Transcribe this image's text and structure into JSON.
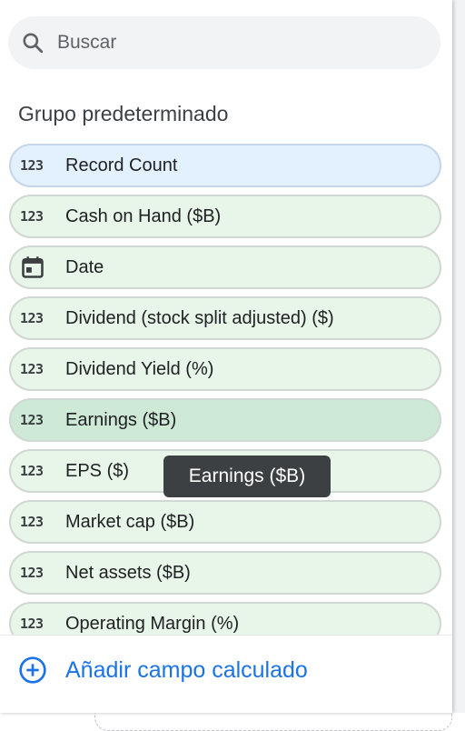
{
  "search": {
    "placeholder": "Buscar",
    "icon": "search-icon"
  },
  "group": {
    "title": "Grupo predeterminado"
  },
  "fields": [
    {
      "type_label": "123",
      "name": "Record Count",
      "kind": "metric-dimension-blue"
    },
    {
      "type_label": "123",
      "name": "Cash on Hand ($B)",
      "kind": "metric"
    },
    {
      "type_label": "",
      "name": "Date",
      "kind": "date",
      "icon": "calendar-icon"
    },
    {
      "type_label": "123",
      "name": "Dividend (stock split adjusted) ($)",
      "kind": "metric"
    },
    {
      "type_label": "123",
      "name": "Dividend Yield (%)",
      "kind": "metric"
    },
    {
      "type_label": "123",
      "name": "Earnings ($B)",
      "kind": "metric",
      "state": "hover"
    },
    {
      "type_label": "123",
      "name": "EPS ($)",
      "kind": "metric"
    },
    {
      "type_label": "123",
      "name": "Market cap ($B)",
      "kind": "metric"
    },
    {
      "type_label": "123",
      "name": "Net assets ($B)",
      "kind": "metric"
    },
    {
      "type_label": "123",
      "name": "Operating Margin (%)",
      "kind": "metric"
    }
  ],
  "tooltip": {
    "text": "Earnings ($B)"
  },
  "footer": {
    "add_calculated_field": "Añadir campo calculado",
    "icon": "add-circle-icon"
  },
  "colors": {
    "metric_bg": "#e8f5e9",
    "metric_hover_bg": "#ceead6",
    "blue_bg": "#e3f0fd",
    "accent": "#1a73e8",
    "tooltip_bg": "#3c4043"
  }
}
